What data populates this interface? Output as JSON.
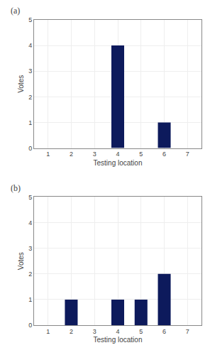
{
  "chart_data": [
    {
      "type": "bar",
      "title": "(a)",
      "x": [
        1,
        2,
        3,
        4,
        5,
        6,
        7
      ],
      "values": [
        0,
        0,
        0,
        4,
        0,
        1,
        0
      ],
      "x_label": "Testing location",
      "y_label": "Votes",
      "xlim": [
        0.4,
        7.6
      ],
      "xticks": [
        1,
        2,
        3,
        4,
        5,
        6,
        7
      ],
      "ylim": [
        0,
        5
      ],
      "yticks": [
        0,
        1,
        2,
        3,
        4,
        5
      ],
      "color": "#0d1a5c",
      "grid": true
    },
    {
      "type": "bar",
      "title": "(b)",
      "x": [
        1,
        2,
        3,
        4,
        5,
        6,
        7
      ],
      "values": [
        0,
        1,
        0,
        1,
        1,
        2,
        0
      ],
      "x_label": "Testing location",
      "y_label": "Votes",
      "xlim": [
        0.4,
        7.6
      ],
      "xticks": [
        1,
        2,
        3,
        4,
        5,
        6,
        7
      ],
      "ylim": [
        0,
        5
      ],
      "yticks": [
        0,
        1,
        2,
        3,
        4,
        5
      ],
      "color": "#0d1a5c",
      "grid": true
    }
  ]
}
